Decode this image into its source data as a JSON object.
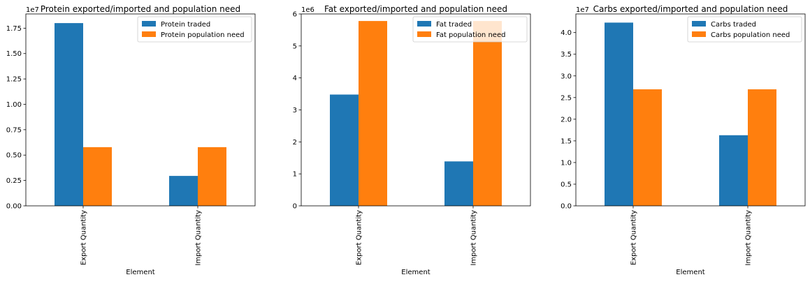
{
  "colors": {
    "series_1": "#1f77b4",
    "series_2": "#ff7f0e"
  },
  "chart_data": [
    {
      "type": "bar",
      "title": "Protein exported/imported and population need",
      "xlabel": "Element",
      "ylabel": "",
      "categories": [
        "Export Quantity",
        "Import Quantity"
      ],
      "series": [
        {
          "name": "Protein traded",
          "values": [
            18000000,
            2950000
          ]
        },
        {
          "name": "Protein population need",
          "values": [
            5780000,
            5780000
          ]
        }
      ],
      "ylim": [
        0,
        18900000
      ],
      "yticks": [
        0,
        2500000,
        5000000,
        7500000,
        10000000,
        12500000,
        15000000,
        17500000
      ],
      "ytick_labels": [
        "0.00",
        "0.25",
        "0.50",
        "0.75",
        "1.00",
        "1.25",
        "1.50",
        "1.75"
      ],
      "offset_text": "1e7",
      "legend": "upper right",
      "grid": false
    },
    {
      "type": "bar",
      "title": "Fat exported/imported and population need",
      "xlabel": "Element",
      "ylabel": "",
      "categories": [
        "Export Quantity",
        "Import Quantity"
      ],
      "series": [
        {
          "name": "Fat traded",
          "values": [
            3480000,
            1390000
          ]
        },
        {
          "name": "Fat population need",
          "values": [
            5780000,
            5780000
          ]
        }
      ],
      "ylim": [
        0,
        6000000
      ],
      "yticks": [
        0,
        1000000,
        2000000,
        3000000,
        4000000,
        5000000,
        6000000
      ],
      "ytick_labels": [
        "0",
        "1",
        "2",
        "3",
        "4",
        "5",
        "6"
      ],
      "offset_text": "1e6",
      "legend": "upper right",
      "grid": false
    },
    {
      "type": "bar",
      "title": "Carbs exported/imported and population need",
      "xlabel": "Element",
      "ylabel": "",
      "categories": [
        "Export Quantity",
        "Import Quantity"
      ],
      "series": [
        {
          "name": "Carbs traded",
          "values": [
            42300000,
            16300000
          ]
        },
        {
          "name": "Carbs population need",
          "values": [
            26900000,
            26900000
          ]
        }
      ],
      "ylim": [
        0,
        44300000
      ],
      "yticks": [
        0,
        5000000,
        10000000,
        15000000,
        20000000,
        25000000,
        30000000,
        35000000,
        40000000
      ],
      "ytick_labels": [
        "0.0",
        "0.5",
        "1.0",
        "1.5",
        "2.0",
        "2.5",
        "3.0",
        "3.5",
        "4.0"
      ],
      "offset_text": "1e7",
      "legend": "upper right",
      "grid": false
    }
  ]
}
